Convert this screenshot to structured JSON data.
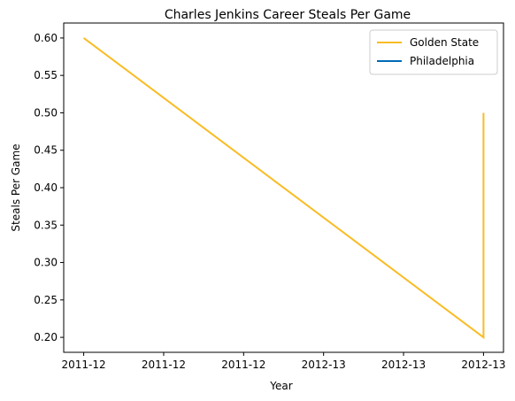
{
  "chart_data": {
    "type": "line",
    "title": "Charles Jenkins  Career Steals Per Game",
    "xlabel": "Year",
    "ylabel": "Steals Per Game",
    "x_tick_labels": [
      "2011-12",
      "2011-12",
      "2011-12",
      "2012-13",
      "2012-13",
      "2012-13"
    ],
    "x_ticks": [
      0,
      0.2,
      0.4,
      0.6,
      0.8,
      1.0
    ],
    "xlim": [
      -0.05,
      1.05
    ],
    "ylim": [
      0.18,
      0.62
    ],
    "y_ticks": [
      0.2,
      0.25,
      0.3,
      0.35,
      0.4,
      0.45,
      0.5,
      0.55,
      0.6
    ],
    "y_tick_labels": [
      "0.20",
      "0.25",
      "0.30",
      "0.35",
      "0.40",
      "0.45",
      "0.50",
      "0.55",
      "0.60"
    ],
    "grid": false,
    "legend_position": "top-right",
    "series": [
      {
        "name": "Golden State",
        "color": "#f9bc24",
        "points": [
          {
            "x": 0.0,
            "y": 0.6
          },
          {
            "x": 1.0,
            "y": 0.2
          },
          {
            "x": 1.0,
            "y": 0.5
          }
        ]
      },
      {
        "name": "Philadelphia",
        "color": "#006bb6",
        "points": []
      }
    ]
  }
}
